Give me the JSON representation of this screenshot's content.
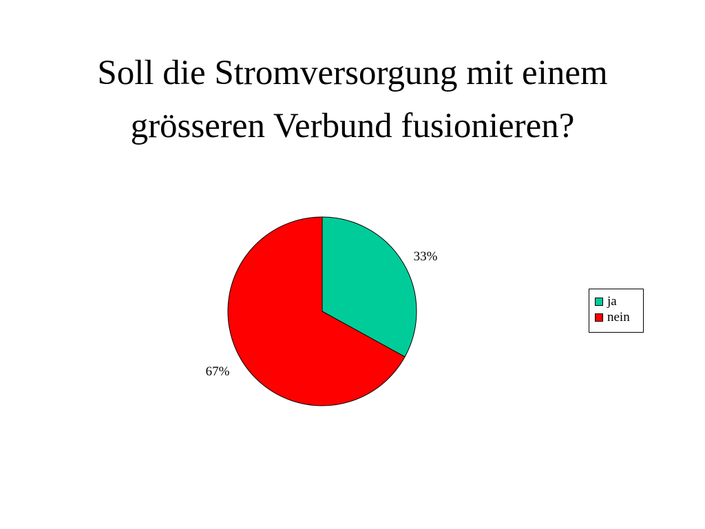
{
  "slide": {
    "title_line1": "Soll die Stromversorgung mit einem",
    "title_line2": "grösseren Verbund fusionieren?"
  },
  "chart_data": {
    "type": "pie",
    "title": "Soll die Stromversorgung mit einem grösseren Verbund fusionieren?",
    "slices": [
      {
        "name": "ja",
        "value": 33,
        "label": "33%",
        "color": "#00CC99"
      },
      {
        "name": "nein",
        "value": 67,
        "label": "67%",
        "color": "#FF0000"
      }
    ],
    "start_angle_deg": 0,
    "direction": "clockwise",
    "legend": "right",
    "legend_entries": [
      "ja",
      "nein"
    ]
  }
}
